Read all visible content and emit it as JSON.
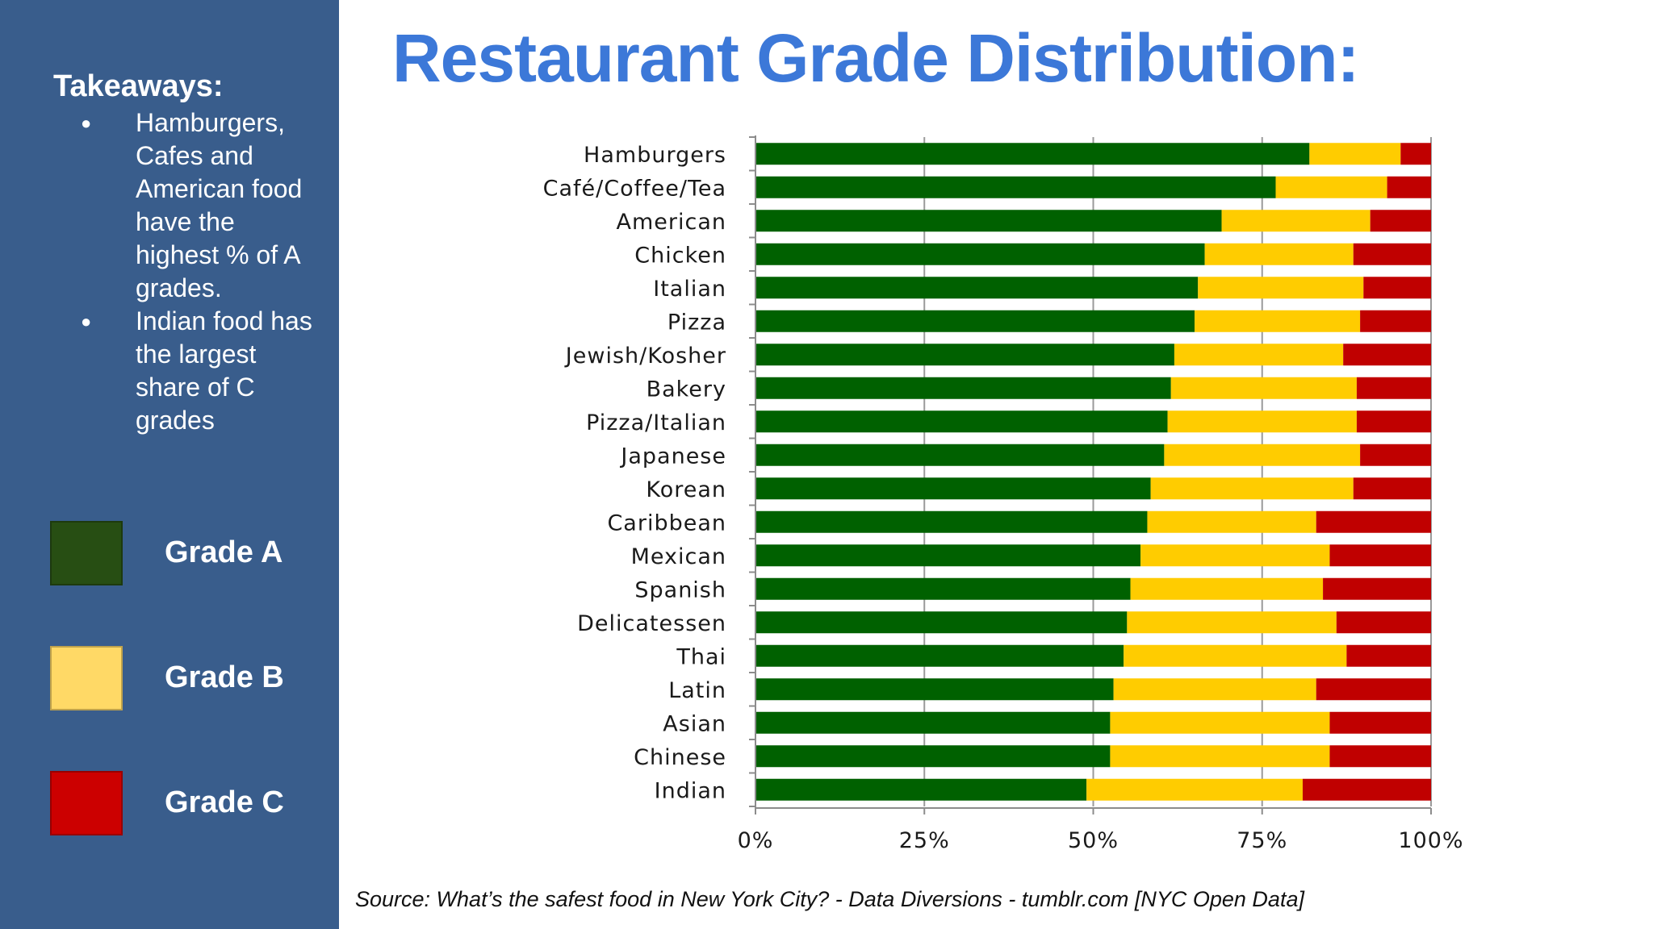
{
  "title": "Restaurant Grade Distribution:",
  "sidebar": {
    "background": "#395d8c",
    "takeaways_title": "Takeaways:",
    "bullets": [
      "Hamburgers, Cafes and American food have the highest % of A grades.",
      "Indian food has the largest share of C grades"
    ],
    "legend": [
      {
        "label": "Grade A",
        "color": "#274e13"
      },
      {
        "label": "Grade B",
        "color": "#ffd966"
      },
      {
        "label": "Grade C",
        "color": "#cc0000"
      }
    ]
  },
  "source": "Source: What’s the safest food in New York City? - Data Diversions - tumblr.com [NYC Open Data]",
  "chart_data": {
    "type": "bar",
    "orientation": "horizontal",
    "stacked": true,
    "percent_stacked": true,
    "categories": [
      "Hamburgers",
      "Café/Coffee/Tea",
      "American",
      "Chicken",
      "Italian",
      "Pizza",
      "Jewish/Kosher",
      "Bakery",
      "Pizza/Italian",
      "Japanese",
      "Korean",
      "Caribbean",
      "Mexican",
      "Spanish",
      "Delicatessen",
      "Thai",
      "Latin",
      "Asian",
      "Chinese",
      "Indian"
    ],
    "series": [
      {
        "values": [
          82,
          77,
          69,
          66.5,
          65.5,
          65,
          62,
          61.5,
          61,
          60.5,
          58.5,
          58,
          57,
          55.5,
          55,
          54.5,
          53,
          52.5,
          52.5,
          49
        ],
        "color": "#006100"
      },
      {
        "values": [
          13.5,
          16.5,
          22,
          22,
          24.5,
          24.5,
          25,
          27.5,
          28,
          29,
          30,
          25,
          28,
          28.5,
          31,
          33,
          30,
          32.5,
          32.5,
          32
        ],
        "color": "#ffcc00"
      },
      {
        "values": [
          4.5,
          6.5,
          9,
          11.5,
          10,
          10.5,
          13,
          11,
          11,
          10.5,
          11.5,
          17,
          15,
          16,
          14,
          12.5,
          17,
          15,
          15,
          19
        ],
        "color": "#c00000"
      }
    ],
    "xlim": [
      0,
      100
    ],
    "x_tick_labels": [
      "0%",
      "25%",
      "50%",
      "75%",
      "100%"
    ],
    "x_ticks": [
      0,
      25,
      50,
      75,
      100
    ],
    "grid": true
  }
}
